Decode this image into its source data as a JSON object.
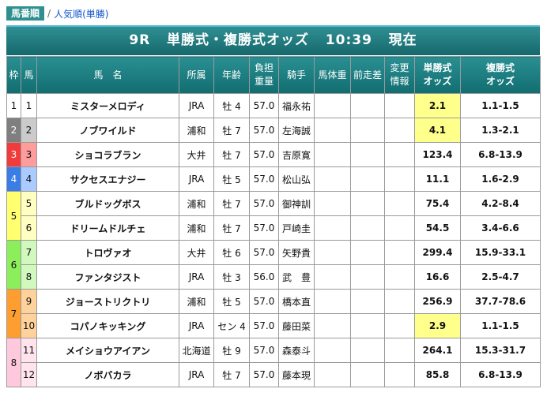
{
  "tabs": {
    "active": "馬番順",
    "separator": "/",
    "link": "人気順(単勝)"
  },
  "header": {
    "race": "9R",
    "title": "単勝式・複勝式オッズ",
    "time": "10:39",
    "status": "現在"
  },
  "columns": {
    "waku": "枠",
    "umaban": "馬",
    "name": "馬　名",
    "shozoku": "所属",
    "nenrei": "年齢",
    "kinryo_1": "負担",
    "kinryo_2": "重量",
    "kishu": "騎手",
    "bataiju": "馬体重",
    "zensoza": "前走差",
    "henko_1": "変更",
    "henko_2": "情報",
    "tansho_1": "単勝式",
    "tansho_2": "オッズ",
    "fukusho_1": "複勝式",
    "fukusho_2": "オッズ"
  },
  "rows": [
    {
      "waku": "1",
      "umaban": "1",
      "name": "ミスターメロディ",
      "shozoku": "JRA",
      "nenrei": "牡 4",
      "kinryo": "57.0",
      "kishu": "福永祐",
      "tansho": "2.1",
      "fukusho": "1.1-1.5"
    },
    {
      "waku": "2",
      "umaban": "2",
      "name": "ノブワイルド",
      "shozoku": "浦和",
      "nenrei": "牡 7",
      "kinryo": "57.0",
      "kishu": "左海誠",
      "tansho": "4.1",
      "fukusho": "1.3-2.1"
    },
    {
      "waku": "3",
      "umaban": "3",
      "name": "ショコラブラン",
      "shozoku": "大井",
      "nenrei": "牡 7",
      "kinryo": "57.0",
      "kishu": "吉原寛",
      "tansho": "123.4",
      "fukusho": "6.8-13.9"
    },
    {
      "waku": "4",
      "umaban": "4",
      "name": "サクセスエナジー",
      "shozoku": "JRA",
      "nenrei": "牡 5",
      "kinryo": "57.0",
      "kishu": "松山弘",
      "tansho": "11.1",
      "fukusho": "1.6-2.9"
    },
    {
      "waku": "5",
      "umaban": "5",
      "name": "ブルドッグボス",
      "shozoku": "浦和",
      "nenrei": "牡 7",
      "kinryo": "57.0",
      "kishu": "御神訓",
      "tansho": "75.4",
      "fukusho": "4.2-8.4"
    },
    {
      "waku": "",
      "umaban": "6",
      "name": "ドリームドルチェ",
      "shozoku": "浦和",
      "nenrei": "牡 7",
      "kinryo": "57.0",
      "kishu": "戸崎圭",
      "tansho": "54.5",
      "fukusho": "3.4-6.6"
    },
    {
      "waku": "6",
      "umaban": "7",
      "name": "トロヴァオ",
      "shozoku": "大井",
      "nenrei": "牡 6",
      "kinryo": "57.0",
      "kishu": "矢野貴",
      "tansho": "299.4",
      "fukusho": "15.9-33.1"
    },
    {
      "waku": "",
      "umaban": "8",
      "name": "ファンタジスト",
      "shozoku": "JRA",
      "nenrei": "牡 3",
      "kinryo": "56.0",
      "kishu": "武　豊",
      "tansho": "16.6",
      "fukusho": "2.5-4.7"
    },
    {
      "waku": "7",
      "umaban": "9",
      "name": "ジョーストリクトリ",
      "shozoku": "浦和",
      "nenrei": "牡 5",
      "kinryo": "57.0",
      "kishu": "橋本直",
      "tansho": "256.9",
      "fukusho": "37.7-78.6"
    },
    {
      "waku": "",
      "umaban": "10",
      "name": "コパノキッキング",
      "shozoku": "JRA",
      "nenrei": "セン 4",
      "kinryo": "57.0",
      "kishu": "藤田菜",
      "tansho": "2.9",
      "fukusho": "1.1-1.5"
    },
    {
      "waku": "8",
      "umaban": "11",
      "name": "メイショウアイアン",
      "shozoku": "北海道",
      "nenrei": "牡 9",
      "kinryo": "57.0",
      "kishu": "森泰斗",
      "tansho": "264.1",
      "fukusho": "15.3-31.7"
    },
    {
      "waku": "",
      "umaban": "12",
      "name": "ノボバカラ",
      "shozoku": "JRA",
      "nenrei": "牡 7",
      "kinryo": "57.0",
      "kishu": "藤本現",
      "tansho": "85.8",
      "fukusho": "6.8-13.9"
    }
  ],
  "highlighted_tansho_rows": [
    0,
    1,
    9
  ],
  "colors": {
    "header_teal": "#16686c",
    "highlight_yellow": "#ffff8c",
    "waku": [
      "#ffffff",
      "#7f7f7f",
      "#f23b3b",
      "#3a7de6",
      "#ffff70",
      "#8cee5a",
      "#ff9e30",
      "#ffc9dd"
    ]
  }
}
